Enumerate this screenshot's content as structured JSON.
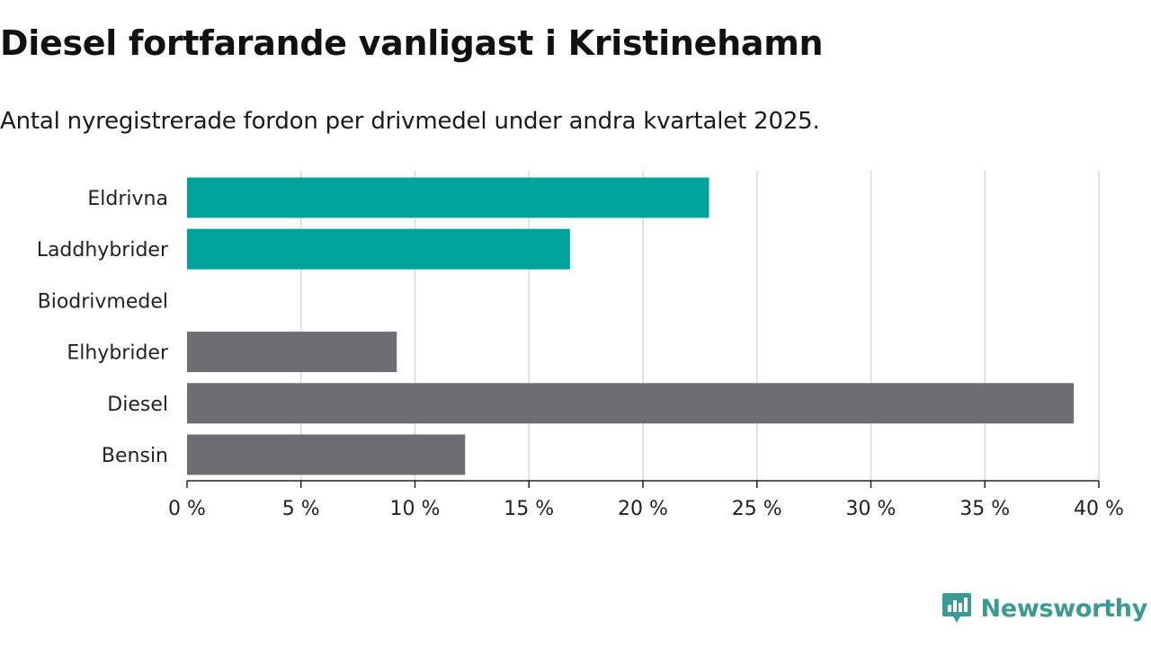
{
  "header": {
    "title": "Diesel fortfarande vanligast i Kristinehamn",
    "subtitle": "Antal nyregistrerade fordon per drivmedel under andra kvartalet 2025."
  },
  "chart_data": {
    "type": "bar",
    "orientation": "horizontal",
    "categories": [
      "Eldrivna",
      "Laddhybrider",
      "Biodrivmedel",
      "Elhybrider",
      "Diesel",
      "Bensin"
    ],
    "values": [
      22.9,
      16.8,
      0,
      9.2,
      38.9,
      12.2
    ],
    "colors": [
      "#00a39a",
      "#00a39a",
      "#00a39a",
      "#6e6d73",
      "#6e6d73",
      "#6e6d73"
    ],
    "xlim": [
      0,
      40
    ],
    "xticks": [
      0,
      5,
      10,
      15,
      20,
      25,
      30,
      35,
      40
    ],
    "xtick_labels": [
      "0 %",
      "5 %",
      "10 %",
      "15 %",
      "20 %",
      "25 %",
      "30 %",
      "35 %",
      "40 %"
    ],
    "grid": true
  },
  "branding": {
    "logo_text": "Newsworthy",
    "logo_icon": "newsworthy-logo-icon",
    "accent_color": "#3a9a94"
  }
}
